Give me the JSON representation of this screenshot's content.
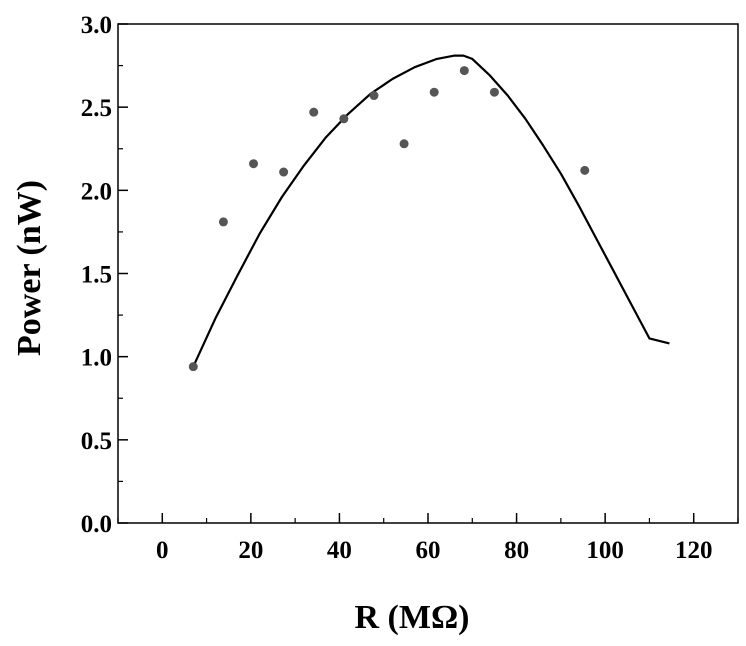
{
  "chart_data": {
    "type": "scatter",
    "xlabel": "R (MΩ)",
    "ylabel": "Power (nW)",
    "xlim": [
      -10,
      130
    ],
    "ylim": [
      0,
      3.0
    ],
    "x_ticks": [
      0,
      20,
      40,
      60,
      80,
      100,
      120
    ],
    "x_tick_labels": [
      "0",
      "20",
      "40",
      "60",
      "80",
      "100",
      "120"
    ],
    "y_ticks": [
      0,
      0.5,
      1.0,
      1.5,
      2.0,
      2.5,
      3.0
    ],
    "y_tick_labels": [
      "0.0",
      "0.5",
      "1.0",
      "1.5",
      "2.0",
      "2.5",
      "3.0"
    ],
    "grid": false,
    "colors": {
      "points": "#555555",
      "curve": "#000000"
    },
    "series": [
      {
        "kind": "points",
        "x": [
          7,
          13.8,
          20.6,
          27.4,
          34.2,
          41,
          47.8,
          54.6,
          61.4,
          68.2,
          75,
          95.4
        ],
        "y": [
          0.94,
          1.81,
          2.16,
          2.11,
          2.47,
          2.43,
          2.57,
          2.28,
          2.59,
          2.72,
          2.59,
          2.12
        ]
      },
      {
        "kind": "curve",
        "x": [
          7,
          12,
          17,
          22,
          27,
          32,
          37,
          42,
          47,
          52,
          57,
          62,
          66,
          68,
          70,
          74,
          78,
          82,
          86,
          90,
          94,
          98,
          102,
          106,
          110,
          114.5
        ],
        "y": [
          0.94,
          1.23,
          1.49,
          1.74,
          1.96,
          2.15,
          2.32,
          2.46,
          2.58,
          2.67,
          2.74,
          2.79,
          2.81,
          2.81,
          2.79,
          2.69,
          2.57,
          2.43,
          2.27,
          2.1,
          1.91,
          1.71,
          1.51,
          1.31,
          1.11,
          1.08
        ]
      }
    ]
  }
}
